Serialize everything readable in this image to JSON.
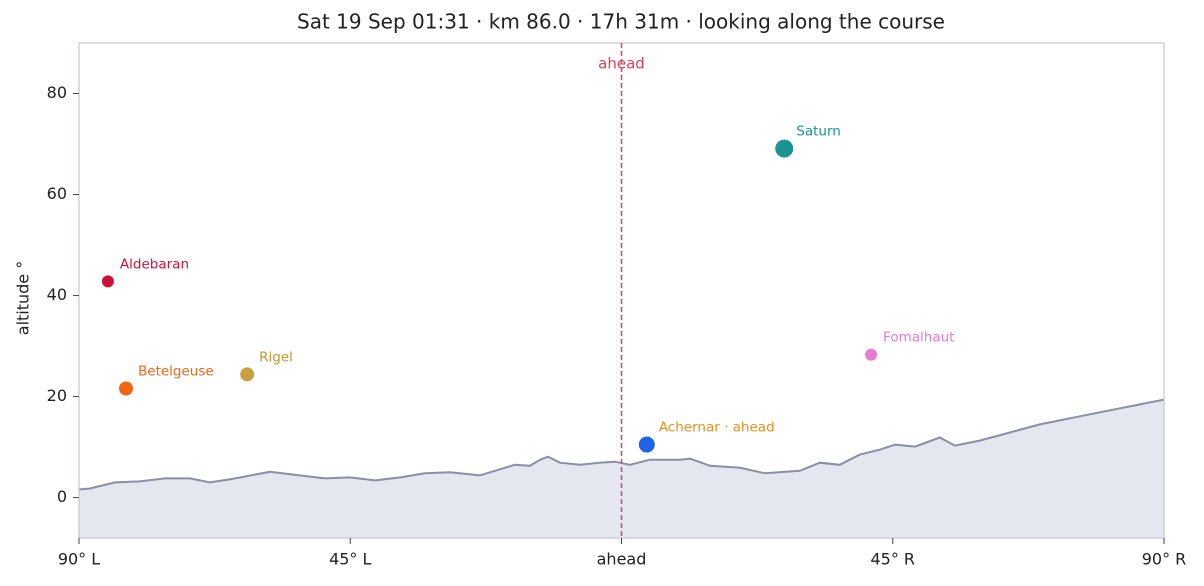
{
  "chart_data": {
    "type": "scatter",
    "title": "Sat 19 Sep 01:31  ·  km 86.0  ·  17h 31m  ·  looking along the course",
    "ylabel": "altitude °",
    "xlim": [
      -90,
      90
    ],
    "ylim": [
      -8,
      90
    ],
    "xticks": [
      {
        "value": -90,
        "label": "90° L"
      },
      {
        "value": -45,
        "label": "45° L"
      },
      {
        "value": 0,
        "label": "ahead"
      },
      {
        "value": 45,
        "label": "45° R"
      },
      {
        "value": 90,
        "label": "90° R"
      }
    ],
    "yticks": [
      0,
      20,
      40,
      60,
      80
    ],
    "vline": {
      "x": 0,
      "label": "ahead",
      "color": "#e0405a"
    },
    "horizon": {
      "fill": "#e4e7f0",
      "color": "#8a8fa3",
      "x": [
        -90,
        -88.2,
        -84.0,
        -79.9,
        -75.7,
        -71.6,
        -68.3,
        -65.0,
        -58.3,
        -53.4,
        -49.2,
        -45.1,
        -40.9,
        -36.7,
        -32.6,
        -28.4,
        -23.5,
        -17.7,
        -15.2,
        -13.5,
        -12.2,
        -10.2,
        -6.9,
        -3.6,
        -1.1,
        1.4,
        4.7,
        9.7,
        11.4,
        14.7,
        19.7,
        23.8,
        29.6,
        32.9,
        36.2,
        39.5,
        42.9,
        45.4,
        48.7,
        52.8,
        55.3,
        59.5,
        69.4,
        77.7,
        90
      ],
      "y": [
        1.6,
        1.8,
        3.0,
        3.2,
        3.8,
        3.8,
        3.0,
        3.6,
        5.1,
        4.4,
        3.8,
        4.0,
        3.4,
        4.0,
        4.8,
        5.0,
        4.4,
        6.5,
        6.3,
        7.5,
        8.1,
        6.9,
        6.5,
        6.9,
        7.1,
        6.5,
        7.5,
        7.5,
        7.7,
        6.3,
        5.9,
        4.8,
        5.3,
        6.9,
        6.5,
        8.5,
        9.5,
        10.5,
        10.1,
        11.9,
        10.3,
        11.3,
        14.5,
        16.5,
        19.4
      ]
    },
    "points": [
      {
        "label": "Aldebaran",
        "x": -85.2,
        "y": 42.8,
        "size": 6,
        "color": "#d0103a",
        "label_color": "#d0103a"
      },
      {
        "label": "Betelgeuse",
        "x": -82.2,
        "y": 21.6,
        "size": 7,
        "color": "#f26512",
        "label_color": "#f26512"
      },
      {
        "label": "Rigel",
        "x": -62.1,
        "y": 24.4,
        "size": 7,
        "color": "#c9a040",
        "label_color": "#c9952c"
      },
      {
        "label": "Achernar · ahead",
        "x": 4.2,
        "y": 10.5,
        "size": 8,
        "color": "#1f63e8",
        "label_color": "#e8901c"
      },
      {
        "label": "Saturn",
        "x": 27.0,
        "y": 69.1,
        "size": 9,
        "color": "#1a9393",
        "label_color": "#1a9393"
      },
      {
        "label": "Fomalhaut",
        "x": 41.4,
        "y": 28.3,
        "size": 6,
        "color": "#e87ad0",
        "label_color": "#e87ad0"
      }
    ]
  }
}
